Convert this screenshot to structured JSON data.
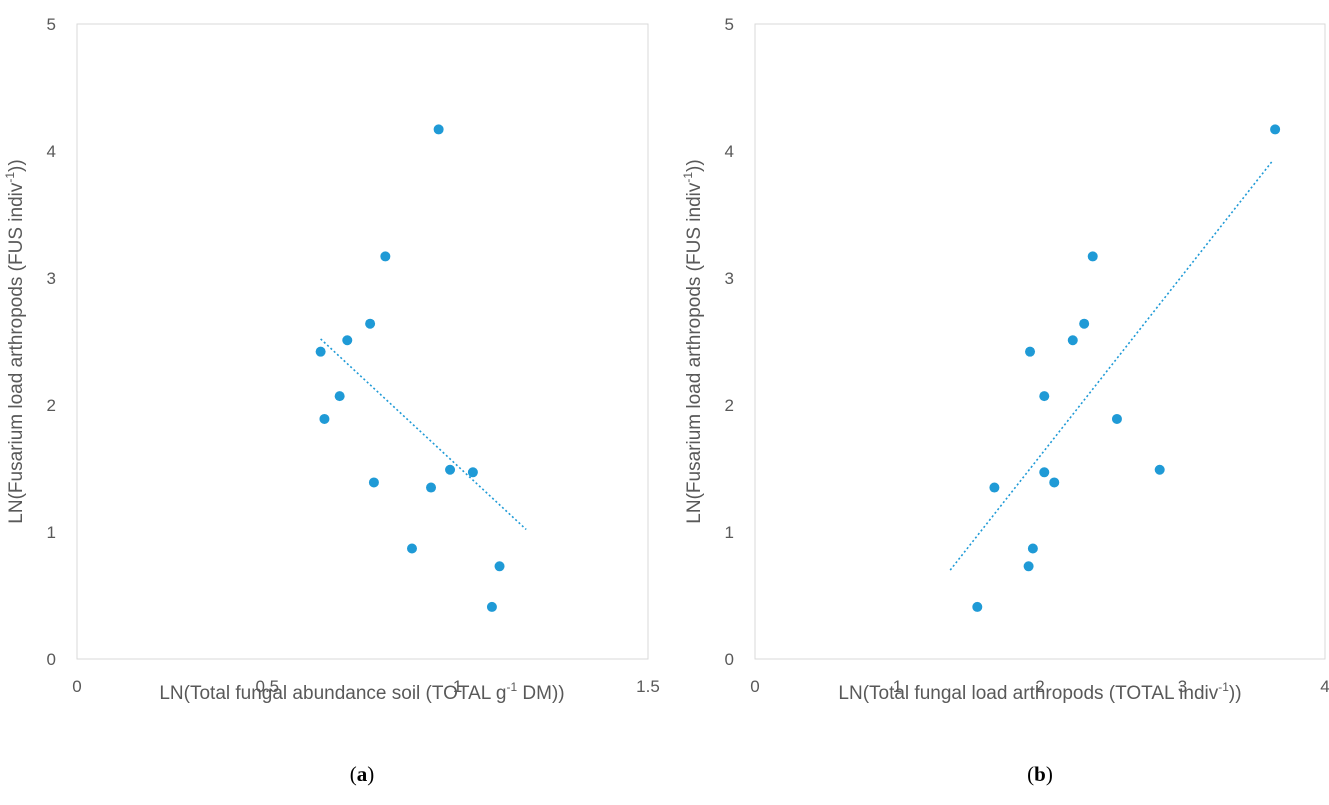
{
  "chart_data": [
    {
      "type": "scatter",
      "panel_label": "a",
      "xlabel": "LN(Total fungal abundance soil (TOTAL g",
      "xlabel_sup": "-1",
      "xlabel_tail": " DM))",
      "ylabel": "LN(Fusarium load arthropods (FUS indiv",
      "ylabel_sup": "-1",
      "ylabel_tail": "))",
      "xlim": [
        0,
        1.5
      ],
      "ylim": [
        0,
        5
      ],
      "xticks": [
        "0",
        "0.5",
        "1",
        "1.5"
      ],
      "yticks": [
        "0",
        "1",
        "2",
        "3",
        "4",
        "5"
      ],
      "points": [
        {
          "x": 0.64,
          "y": 2.42
        },
        {
          "x": 0.65,
          "y": 1.89
        },
        {
          "x": 0.69,
          "y": 2.07
        },
        {
          "x": 0.71,
          "y": 2.51
        },
        {
          "x": 0.77,
          "y": 2.64
        },
        {
          "x": 0.78,
          "y": 1.39
        },
        {
          "x": 0.81,
          "y": 3.17
        },
        {
          "x": 0.88,
          "y": 0.87
        },
        {
          "x": 0.93,
          "y": 1.35
        },
        {
          "x": 0.95,
          "y": 4.17
        },
        {
          "x": 0.98,
          "y": 1.49
        },
        {
          "x": 1.04,
          "y": 1.47
        },
        {
          "x": 1.09,
          "y": 0.41
        },
        {
          "x": 1.11,
          "y": 0.73
        }
      ],
      "trendline": {
        "x": [
          0.64,
          1.18
        ],
        "y": [
          2.52,
          1.02
        ],
        "style": "dotted"
      },
      "grid": false,
      "marker_color": "#1f9ad6"
    },
    {
      "type": "scatter",
      "panel_label": "b",
      "xlabel": "LN(Total fungal load arthropods (TOTAL indiv",
      "xlabel_sup": "-1",
      "xlabel_tail": "))",
      "ylabel": "LN(Fusarium load arthropods (FUS indiv",
      "ylabel_sup": "-1",
      "ylabel_tail": "))",
      "xlim": [
        0,
        4
      ],
      "ylim": [
        0,
        5
      ],
      "xticks": [
        "0",
        "1",
        "2",
        "3",
        "4"
      ],
      "yticks": [
        "0",
        "1",
        "2",
        "3",
        "4",
        "5"
      ],
      "points": [
        {
          "x": 1.56,
          "y": 0.41
        },
        {
          "x": 1.68,
          "y": 1.35
        },
        {
          "x": 1.92,
          "y": 0.73
        },
        {
          "x": 1.93,
          "y": 2.42
        },
        {
          "x": 1.95,
          "y": 0.87
        },
        {
          "x": 2.03,
          "y": 2.07
        },
        {
          "x": 2.03,
          "y": 1.47
        },
        {
          "x": 2.1,
          "y": 1.39
        },
        {
          "x": 2.23,
          "y": 2.51
        },
        {
          "x": 2.31,
          "y": 2.64
        },
        {
          "x": 2.37,
          "y": 3.17
        },
        {
          "x": 2.54,
          "y": 1.89
        },
        {
          "x": 2.84,
          "y": 1.49
        },
        {
          "x": 3.65,
          "y": 4.17
        }
      ],
      "trendline": {
        "x": [
          1.37,
          3.63
        ],
        "y": [
          0.7,
          3.92
        ],
        "style": "dotted"
      },
      "grid": false,
      "marker_color": "#1f9ad6"
    }
  ]
}
